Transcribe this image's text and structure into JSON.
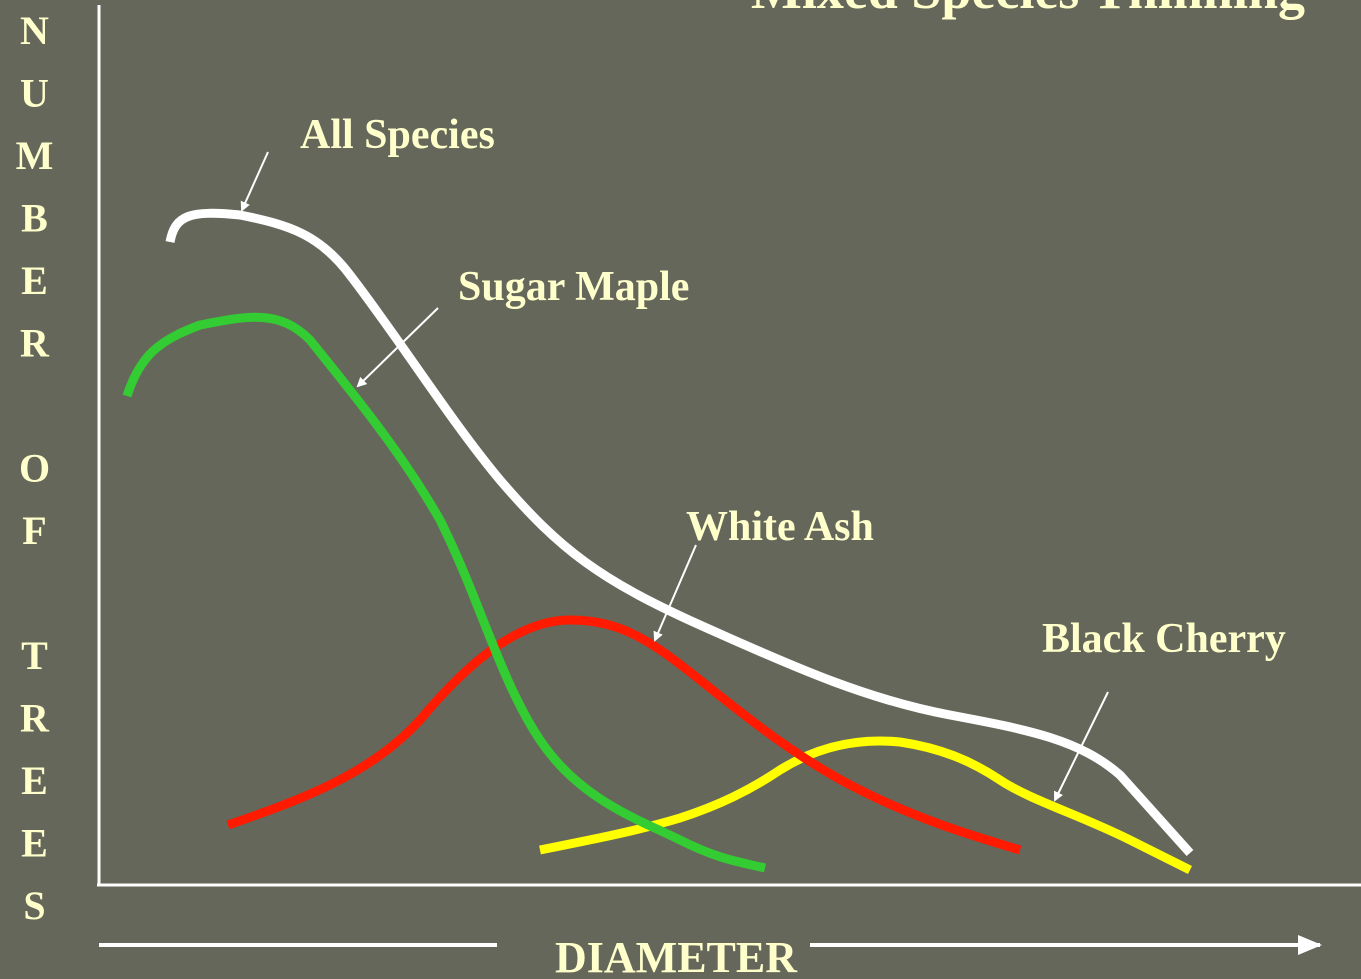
{
  "title": "Mixed Species Thinning",
  "y_axis_label": "NUMBER OF TREES",
  "x_axis_label": "DIAMETER",
  "curves": [
    {
      "label": "All Species"
    },
    {
      "label": "Sugar Maple"
    },
    {
      "label": "White Ash"
    },
    {
      "label": "Black Cherry"
    }
  ]
}
